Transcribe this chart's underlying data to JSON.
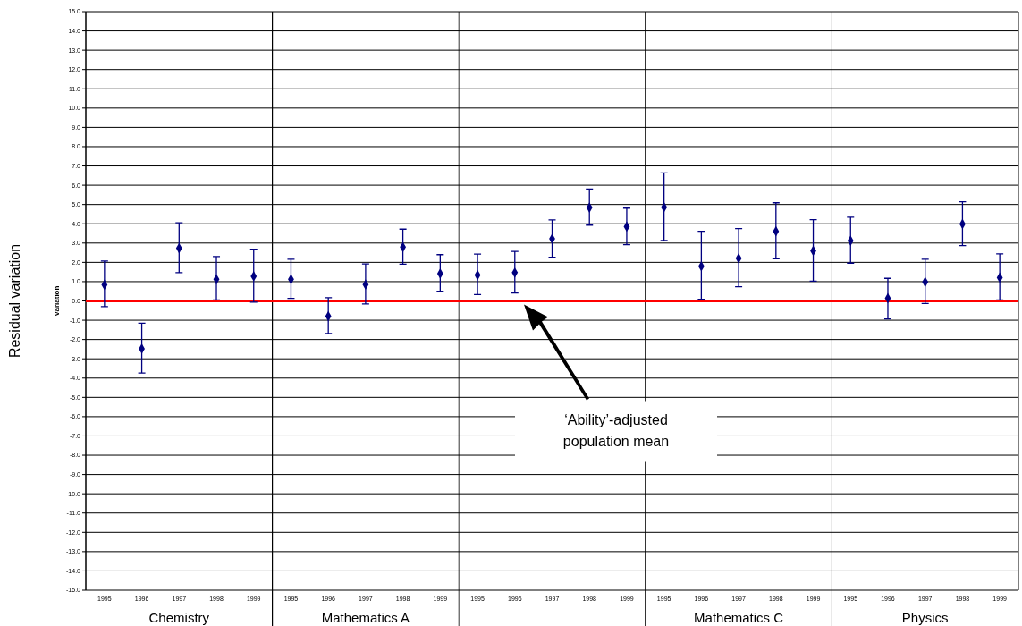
{
  "chart_data": {
    "type": "scatter",
    "ylabel": "Residual variation",
    "categories": [
      "1995",
      "1996",
      "1997",
      "1998",
      "1999",
      "1995",
      "1996",
      "1997",
      "1998",
      "1999",
      "1995",
      "1996",
      "1997",
      "1998",
      "1999",
      "1995",
      "1996",
      "1997",
      "1998",
      "1999",
      "1995",
      "1996",
      "1997",
      "1998",
      "1999"
    ],
    "series": [
      {
        "color": "#000080",
        "values": [
          0.84,
          -2.48,
          2.73,
          1.12,
          1.28,
          1.12,
          -0.79,
          0.85,
          2.79,
          1.42,
          1.34,
          1.47,
          3.22,
          4.84,
          3.85,
          4.86,
          1.8,
          2.21,
          3.61,
          2.6,
          3.12,
          0.14,
          0.98,
          3.99,
          1.21
        ],
        "errors": [
          [
            -0.3,
            2.07
          ],
          [
            -3.74,
            -1.15
          ],
          [
            1.47,
            4.05
          ],
          [
            0.05,
            2.3
          ],
          [
            -0.06,
            2.68
          ],
          [
            0.13,
            2.16
          ],
          [
            -1.69,
            0.17
          ],
          [
            -0.16,
            1.92
          ],
          [
            1.91,
            3.72
          ],
          [
            0.5,
            2.4
          ],
          [
            0.33,
            2.43
          ],
          [
            0.41,
            2.57
          ],
          [
            2.27,
            4.2
          ],
          [
            3.93,
            5.8
          ],
          [
            2.92,
            4.81
          ],
          [
            3.14,
            6.64
          ],
          [
            0.09,
            3.61
          ],
          [
            0.74,
            3.75
          ],
          [
            2.19,
            5.09
          ],
          [
            1.03,
            4.21
          ],
          [
            1.96,
            4.34
          ],
          [
            -0.93,
            1.17
          ],
          [
            -0.13,
            2.16
          ],
          [
            2.87,
            5.14
          ],
          [
            0.05,
            2.44
          ]
        ]
      }
    ],
    "marker": "diamond",
    "grid": "y",
    "ylim": [
      -15,
      15
    ],
    "yticks": [
      {
        "value": -15,
        "label": "-15.0"
      },
      {
        "value": -14,
        "label": "-14.0"
      },
      {
        "value": -13,
        "label": "-13.0"
      },
      {
        "value": -12,
        "label": "-12.0"
      },
      {
        "value": -11,
        "label": "-11.0"
      },
      {
        "value": -10,
        "label": "-10.0"
      },
      {
        "value": -9,
        "label": "-9.0"
      },
      {
        "value": -8,
        "label": "-8.0"
      },
      {
        "value": -7,
        "label": "-7.0"
      },
      {
        "value": -6,
        "label": "-6.0"
      },
      {
        "value": -5,
        "label": "-5.0"
      },
      {
        "value": -4,
        "label": "-4.0"
      },
      {
        "value": -3,
        "label": "-3.0"
      },
      {
        "value": -2,
        "label": "-2.0"
      },
      {
        "value": -1,
        "label": "-1.0"
      },
      {
        "value": 0,
        "label": "0.0"
      },
      {
        "value": 1,
        "label": "1.0"
      },
      {
        "value": 2,
        "label": "2.0"
      },
      {
        "value": 3,
        "label": "3.0"
      },
      {
        "value": 4,
        "label": "4.0"
      },
      {
        "value": 5,
        "label": "5.0"
      },
      {
        "value": 6,
        "label": "6.0"
      },
      {
        "value": 7,
        "label": "7.0"
      },
      {
        "value": 8,
        "label": "8.0"
      },
      {
        "value": 9,
        "label": "9.0"
      },
      {
        "value": 10,
        "label": "10.0"
      },
      {
        "value": 11,
        "label": "11.0"
      },
      {
        "value": 12,
        "label": "12.0"
      },
      {
        "value": 13,
        "label": "13.0"
      },
      {
        "value": 14,
        "label": "14.0"
      },
      {
        "value": 15,
        "label": "15.0"
      }
    ],
    "ref_lines": [
      {
        "axis": "y",
        "value": 0,
        "color": "#ff0000"
      }
    ],
    "annotations": [
      "Chemistry",
      "Mathematics A",
      "Mathematics C",
      "Physics",
      "Variation",
      "‘Ability’-adjusted population mean"
    ]
  }
}
